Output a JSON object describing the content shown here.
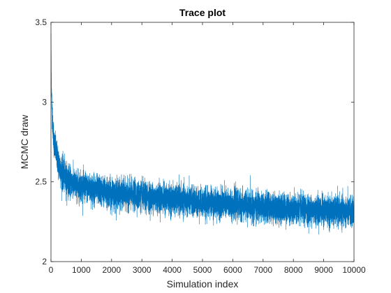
{
  "chart_data": {
    "type": "line",
    "title": "Trace plot",
    "xlabel": "Simulation index",
    "ylabel": "MCMC draw",
    "xlim": [
      0,
      10000
    ],
    "ylim": [
      2,
      3.5
    ],
    "xticks": [
      0,
      1000,
      2000,
      3000,
      4000,
      5000,
      6000,
      7000,
      8000,
      9000,
      10000
    ],
    "xtick_labels": [
      "0",
      "1000",
      "2000",
      "3000",
      "4000",
      "5000",
      "6000",
      "7000",
      "8000",
      "9000",
      "10000"
    ],
    "yticks": [
      2,
      2.5,
      3,
      3.5
    ],
    "ytick_labels": [
      "2",
      "2.5",
      "3",
      "3.5"
    ],
    "grid": false,
    "box": true,
    "series": [
      {
        "color": "#0072bd",
        "n_samples": 10000,
        "trend": {
          "x": [
            0,
            20,
            50,
            100,
            200,
            300,
            500,
            800,
            1000,
            1500,
            2000,
            3000,
            4000,
            5000,
            6000,
            7000,
            8000,
            9000,
            10000
          ],
          "center": [
            3.45,
            3.05,
            2.88,
            2.75,
            2.66,
            2.58,
            2.52,
            2.48,
            2.47,
            2.45,
            2.43,
            2.41,
            2.39,
            2.37,
            2.36,
            2.34,
            2.33,
            2.32,
            2.31
          ],
          "spread": [
            0.0,
            0.1,
            0.1,
            0.1,
            0.1,
            0.12,
            0.11,
            0.1,
            0.1,
            0.1,
            0.1,
            0.1,
            0.1,
            0.1,
            0.1,
            0.1,
            0.1,
            0.1,
            0.1
          ]
        },
        "observed_range": {
          "min": 2.15,
          "max": 3.48
        }
      }
    ]
  }
}
